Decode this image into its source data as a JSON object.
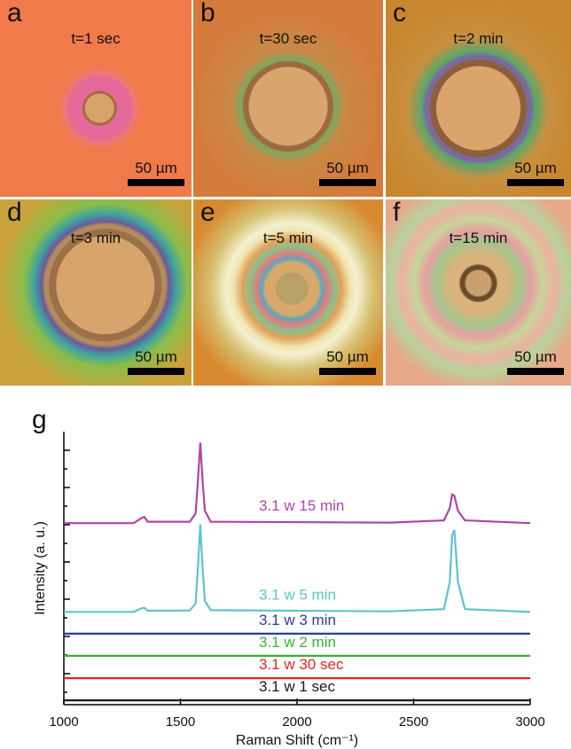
{
  "panels": [
    {
      "letter": "a",
      "time": "t=1 sec",
      "scale": "50 µm"
    },
    {
      "letter": "b",
      "time": "t=30 sec",
      "scale": "50 µm"
    },
    {
      "letter": "c",
      "time": "t=2 min",
      "scale": "50 µm"
    },
    {
      "letter": "d",
      "time": "t=3 min",
      "scale": "50 µm"
    },
    {
      "letter": "e",
      "time": "t=5 min",
      "scale": "50 µm"
    },
    {
      "letter": "f",
      "time": "t=15 min",
      "scale": "50 µm"
    }
  ],
  "chart_data": {
    "type": "line",
    "panel_label": "g",
    "x_label": "Raman Shift (cm⁻¹)",
    "y_label": "Intensity (a. u.)",
    "xlim": [
      1000,
      3000
    ],
    "xticks": [
      1000,
      1500,
      2000,
      2500,
      3000
    ],
    "ylim": [
      0,
      100
    ],
    "x": [
      1000,
      1300,
      1330,
      1345,
      1360,
      1540,
      1565,
      1575,
      1585,
      1595,
      1605,
      1630,
      2400,
      2630,
      2655,
      2665,
      2675,
      2690,
      2720,
      3000
    ],
    "series": [
      {
        "name": "3.1 w 15 min",
        "color": "#b044a8",
        "values": [
          66.5,
          66.5,
          68.2,
          68.8,
          67,
          67,
          70,
          82,
          96,
          82,
          71,
          67,
          66.7,
          67.5,
          72,
          77,
          76.5,
          71,
          67.5,
          66.5
        ]
      },
      {
        "name": "3.1 w 5 min",
        "color": "#5bc4cf",
        "values": [
          34,
          34,
          35.2,
          35.5,
          34.4,
          34.5,
          37,
          50,
          66,
          50,
          38,
          34.6,
          34.2,
          35,
          45,
          62,
          64,
          45,
          35,
          34
        ]
      },
      {
        "name": "3.1 w 3 min",
        "color": "#2b3d9b",
        "values": [
          26,
          26,
          26,
          26,
          26,
          26,
          26,
          26,
          26,
          26,
          26,
          26,
          26,
          26,
          26,
          26,
          26,
          26,
          26,
          26
        ]
      },
      {
        "name": "3.1 w 2 min",
        "color": "#3cb03a",
        "values": [
          17.9,
          17.9,
          17.9,
          17.9,
          17.9,
          17.9,
          17.9,
          17.9,
          17.9,
          17.9,
          17.9,
          17.9,
          17.9,
          17.9,
          17.9,
          17.9,
          17.9,
          17.9,
          17.9,
          17.9
        ]
      },
      {
        "name": "3.1 w 30 sec",
        "color": "#e8231e",
        "values": [
          9.7,
          9.7,
          9.7,
          9.7,
          9.7,
          9.7,
          9.7,
          9.7,
          9.7,
          9.7,
          9.7,
          9.7,
          9.7,
          9.7,
          9.7,
          9.7,
          9.7,
          9.7,
          9.7,
          9.7
        ]
      },
      {
        "name": "3.1 w 1 sec",
        "color": "#1a1a1a",
        "values": [
          1.6,
          1.6,
          1.6,
          1.6,
          1.6,
          1.6,
          1.6,
          1.6,
          1.6,
          1.6,
          1.6,
          1.6,
          1.6,
          1.6,
          1.6,
          1.6,
          1.6,
          1.6,
          1.6,
          1.6
        ]
      }
    ]
  }
}
